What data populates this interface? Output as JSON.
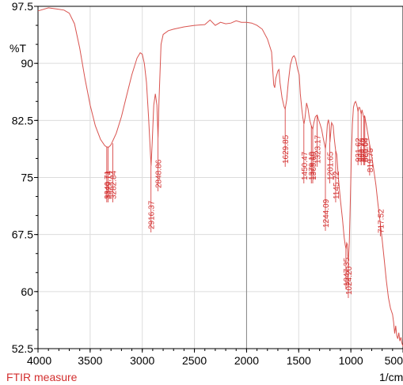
{
  "chart_data": {
    "type": "line",
    "title": "",
    "xlabel": "",
    "ylabel": "%T",
    "x_unit": "1/cm",
    "caption": "FTIR measure",
    "xlim": [
      4000,
      500
    ],
    "ylim": [
      52.5,
      97.5
    ],
    "x_ticks": [
      "4000",
      "3500",
      "3000",
      "2500",
      "2000",
      "1500",
      "1000",
      "500"
    ],
    "y_ticks": [
      "97.5",
      "90",
      "82.5",
      "75",
      "67.5",
      "60",
      "52.5"
    ],
    "grid": true,
    "series": [
      {
        "color": "#d9534f",
        "points": [
          [
            4000,
            96.9
          ],
          [
            3900,
            97.3
          ],
          [
            3800,
            97.1
          ],
          [
            3750,
            97.0
          ],
          [
            3700,
            96.6
          ],
          [
            3650,
            95.2
          ],
          [
            3600,
            92.0
          ],
          [
            3550,
            88.0
          ],
          [
            3500,
            84.5
          ],
          [
            3450,
            81.8
          ],
          [
            3400,
            80.0
          ],
          [
            3360,
            79.2
          ],
          [
            3340,
            79.0
          ],
          [
            3320,
            79.0
          ],
          [
            3300,
            79.3
          ],
          [
            3250,
            80.8
          ],
          [
            3200,
            83.0
          ],
          [
            3150,
            85.8
          ],
          [
            3100,
            88.5
          ],
          [
            3050,
            90.7
          ],
          [
            3020,
            91.4
          ],
          [
            3000,
            91.2
          ],
          [
            2980,
            90.0
          ],
          [
            2960,
            87.5
          ],
          [
            2940,
            83.0
          ],
          [
            2925,
            79.0
          ],
          [
            2916,
            76.5
          ],
          [
            2905,
            79.5
          ],
          [
            2890,
            84.5
          ],
          [
            2875,
            86.0
          ],
          [
            2860,
            84.5
          ],
          [
            2849,
            80.2
          ],
          [
            2840,
            85.0
          ],
          [
            2820,
            92.5
          ],
          [
            2800,
            93.8
          ],
          [
            2750,
            94.3
          ],
          [
            2700,
            94.5
          ],
          [
            2600,
            94.8
          ],
          [
            2500,
            95.0
          ],
          [
            2400,
            95.1
          ],
          [
            2350,
            95.7
          ],
          [
            2300,
            95.0
          ],
          [
            2250,
            95.4
          ],
          [
            2200,
            95.2
          ],
          [
            2150,
            95.3
          ],
          [
            2100,
            95.6
          ],
          [
            2050,
            95.4
          ],
          [
            2000,
            95.4
          ],
          [
            1950,
            95.3
          ],
          [
            1900,
            95.0
          ],
          [
            1850,
            94.5
          ],
          [
            1800,
            93.2
          ],
          [
            1760,
            91.5
          ],
          [
            1740,
            87.2
          ],
          [
            1730,
            86.8
          ],
          [
            1720,
            88.0
          ],
          [
            1700,
            89.0
          ],
          [
            1690,
            89.2
          ],
          [
            1680,
            87.5
          ],
          [
            1660,
            85.5
          ],
          [
            1640,
            84.3
          ],
          [
            1630,
            84.0
          ],
          [
            1615,
            85.2
          ],
          [
            1600,
            87.5
          ],
          [
            1580,
            89.8
          ],
          [
            1560,
            90.8
          ],
          [
            1545,
            91.0
          ],
          [
            1530,
            90.6
          ],
          [
            1510,
            89.2
          ],
          [
            1495,
            88.5
          ],
          [
            1485,
            86.0
          ],
          [
            1470,
            84.0
          ],
          [
            1460,
            82.8
          ],
          [
            1450,
            82.0
          ],
          [
            1440,
            82.8
          ],
          [
            1425,
            84.8
          ],
          [
            1410,
            84.0
          ],
          [
            1400,
            83.0
          ],
          [
            1390,
            82.3
          ],
          [
            1379,
            81.8
          ],
          [
            1370,
            81.5
          ],
          [
            1365,
            81.4
          ],
          [
            1355,
            82.2
          ],
          [
            1340,
            83.0
          ],
          [
            1323,
            83.2
          ],
          [
            1310,
            82.6
          ],
          [
            1295,
            82.0
          ],
          [
            1280,
            81.3
          ],
          [
            1265,
            80.2
          ],
          [
            1250,
            79.2
          ],
          [
            1244,
            78.8
          ],
          [
            1235,
            80.0
          ],
          [
            1225,
            82.0
          ],
          [
            1215,
            82.6
          ],
          [
            1205,
            81.8
          ],
          [
            1201,
            79.6
          ],
          [
            1195,
            80.6
          ],
          [
            1185,
            82.2
          ],
          [
            1170,
            81.8
          ],
          [
            1160,
            80.2
          ],
          [
            1150,
            79.0
          ],
          [
            1145,
            78.5
          ],
          [
            1135,
            78.0
          ],
          [
            1120,
            75.0
          ],
          [
            1100,
            72.0
          ],
          [
            1080,
            69.5
          ],
          [
            1065,
            67.2
          ],
          [
            1055,
            66.2
          ],
          [
            1047,
            65.6
          ],
          [
            1040,
            66.4
          ],
          [
            1034,
            66.2
          ],
          [
            1030,
            64.8
          ],
          [
            1024,
            64.0
          ],
          [
            1015,
            66.5
          ],
          [
            1005,
            72.0
          ],
          [
            995,
            78.0
          ],
          [
            985,
            82.0
          ],
          [
            975,
            84.2
          ],
          [
            965,
            84.8
          ],
          [
            955,
            85.0
          ],
          [
            945,
            84.6
          ],
          [
            935,
            84.0
          ],
          [
            931,
            83.6
          ],
          [
            925,
            84.2
          ],
          [
            915,
            84.2
          ],
          [
            905,
            83.6
          ],
          [
            900,
            83.3
          ],
          [
            893,
            83.9
          ],
          [
            885,
            83.4
          ],
          [
            876,
            82.8
          ],
          [
            870,
            83.1
          ],
          [
            866,
            83.0
          ],
          [
            860,
            82.5
          ],
          [
            850,
            81.8
          ],
          [
            840,
            81.0
          ],
          [
            830,
            80.2
          ],
          [
            820,
            79.3
          ],
          [
            810,
            78.6
          ],
          [
            800,
            77.8
          ],
          [
            780,
            76.0
          ],
          [
            760,
            74.0
          ],
          [
            740,
            71.5
          ],
          [
            718,
            69.0
          ],
          [
            700,
            66.8
          ],
          [
            680,
            64.2
          ],
          [
            660,
            61.5
          ],
          [
            640,
            59.2
          ],
          [
            620,
            57.8
          ],
          [
            600,
            57.0
          ],
          [
            590,
            56.0
          ],
          [
            580,
            54.5
          ],
          [
            570,
            55.5
          ],
          [
            560,
            54.2
          ],
          [
            550,
            53.8
          ],
          [
            540,
            54.6
          ],
          [
            530,
            53.5
          ],
          [
            520,
            54.0
          ],
          [
            510,
            53.2
          ],
          [
            500,
            52.8
          ]
        ]
      }
    ],
    "peak_labels": [
      {
        "x": 3340.71,
        "label": "3340.71",
        "y": 79.0
      },
      {
        "x": 3329.14,
        "label": "3329.14",
        "y": 79.0
      },
      {
        "x": 3282.84,
        "label": "3282.84",
        "y": 79.5
      },
      {
        "x": 2916.37,
        "label": "2916.37",
        "y": 76.5
      },
      {
        "x": 2848.86,
        "label": "2848.86",
        "y": 80.2
      },
      {
        "x": 1629.85,
        "label": "1629.85",
        "y": 84.0
      },
      {
        "x": 1450.47,
        "label": "1450.47",
        "y": 82.0
      },
      {
        "x": 1379.1,
        "label": "1379.10",
        "y": 81.8
      },
      {
        "x": 1365.6,
        "label": "1365.60",
        "y": 81.4
      },
      {
        "x": 1323.17,
        "label": "1323.17",
        "y": 83.2
      },
      {
        "x": 1244.09,
        "label": "1244.09",
        "y": 78.8
      },
      {
        "x": 1201.65,
        "label": "1201.65",
        "y": 79.6
      },
      {
        "x": 1145.72,
        "label": "1145.72",
        "y": 78.5
      },
      {
        "x": 1047.35,
        "label": "1047.35",
        "y": 65.6
      },
      {
        "x": 1024.2,
        "label": "1024.20",
        "y": 64.0
      },
      {
        "x": 931.62,
        "label": "931.62",
        "y": 83.6
      },
      {
        "x": 900.76,
        "label": "900.76",
        "y": 83.3
      },
      {
        "x": 875.68,
        "label": "875.68",
        "y": 82.8
      },
      {
        "x": 866.04,
        "label": "866.04",
        "y": 83.0
      },
      {
        "x": 819.75,
        "label": "819.75",
        "y": 79.3
      },
      {
        "x": 717.52,
        "label": "717.52",
        "y": 69.0
      }
    ]
  }
}
